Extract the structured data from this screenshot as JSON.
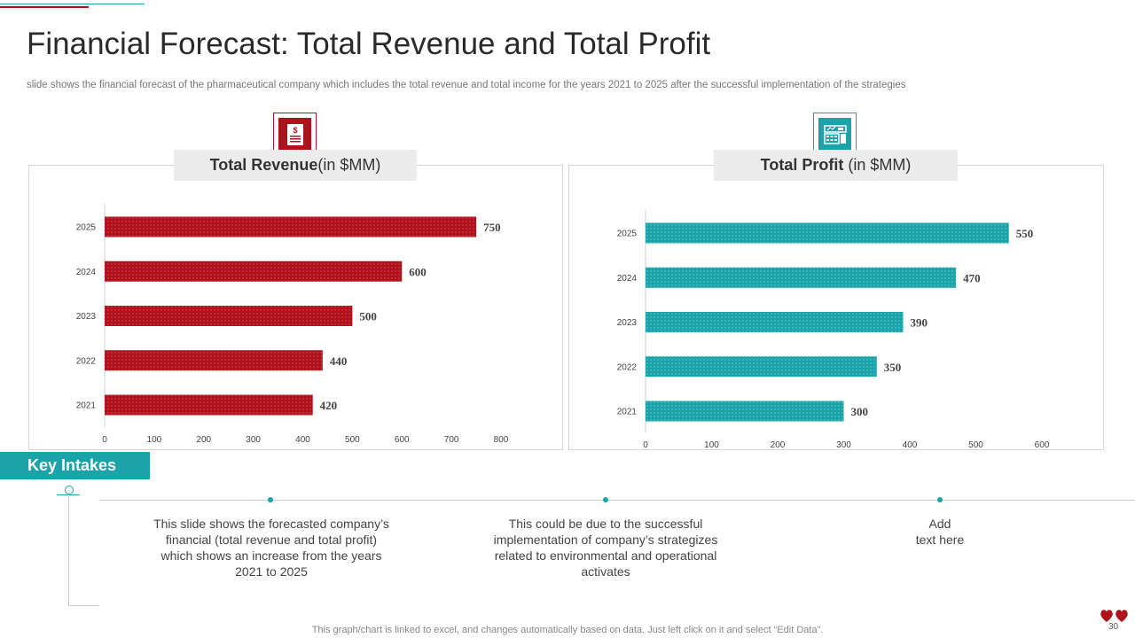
{
  "title": "Financial Forecast: Total Revenue and Total Profit",
  "subtitle": "slide shows the financial forecast of the pharmaceutical company which includes the total revenue  and total income for the years 2021 to 2025 after the successful implementation of the strategies",
  "colors": {
    "revenue": "#b0121b",
    "profit": "#1aa3a8"
  },
  "icons": {
    "revenue": "dollar-document-icon",
    "profit": "calculator-dashboard-icon"
  },
  "chart_data": [
    {
      "type": "bar",
      "orientation": "horizontal",
      "title": "Total Revenue",
      "title_unit": "(in $MM)",
      "categories": [
        "2025",
        "2024",
        "2023",
        "2022",
        "2021"
      ],
      "values": [
        750,
        600,
        500,
        440,
        420
      ],
      "xlim": [
        0,
        800
      ],
      "xticks": [
        0,
        100,
        200,
        300,
        400,
        500,
        600,
        700,
        800
      ],
      "color": "#b0121b"
    },
    {
      "type": "bar",
      "orientation": "horizontal",
      "title": "Total Profit",
      "title_unit": " (in $MM)",
      "categories": [
        "2025",
        "2024",
        "2023",
        "2022",
        "2021"
      ],
      "values": [
        550,
        470,
        390,
        350,
        300
      ],
      "xlim": [
        0,
        600
      ],
      "xticks": [
        0,
        100,
        200,
        300,
        400,
        500,
        600
      ],
      "color": "#1aa3a8"
    }
  ],
  "key_intakes": {
    "label": "Key Intakes",
    "points": [
      "This slide shows the forecasted company’s financial (total revenue and total profit) which shows an increase from the years 2021 to 2025",
      "This could be due to the successful implementation of company’s strategizes related to environmental and operational activates",
      "Add\ntext here"
    ]
  },
  "footer": "This graph/chart is linked to excel,  and changes automatically based on data. Just left click on it and select “Edit Data”.",
  "page_number": "30"
}
